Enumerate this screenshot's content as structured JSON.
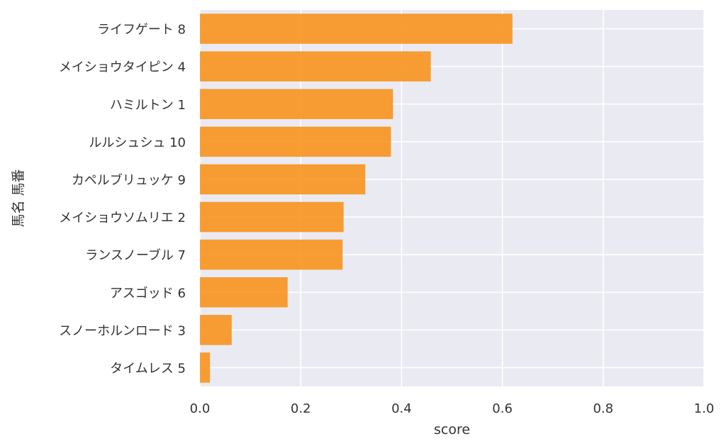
{
  "chart_data": {
    "type": "bar",
    "orientation": "horizontal",
    "categories": [
      "ライフゲート 8",
      "メイショウタイピン 4",
      "ハミルトン 1",
      "ルルシュシュ 10",
      "カペルブリュッケ 9",
      "メイショウソムリエ 2",
      "ランスノーブル 7",
      "アスゴッド 6",
      "スノーホルンロード 3",
      "タイムレス 5"
    ],
    "values": [
      0.62,
      0.458,
      0.383,
      0.379,
      0.328,
      0.285,
      0.283,
      0.174,
      0.063,
      0.02
    ],
    "xlabel": "score",
    "ylabel": "馬名 馬番",
    "xlim": [
      0,
      1.0
    ],
    "xticks": [
      "0.0",
      "0.2",
      "0.4",
      "0.6",
      "0.8",
      "1.0"
    ],
    "grid": true,
    "bar_color": "#f7931e",
    "background_color": "#eaeaf2"
  }
}
